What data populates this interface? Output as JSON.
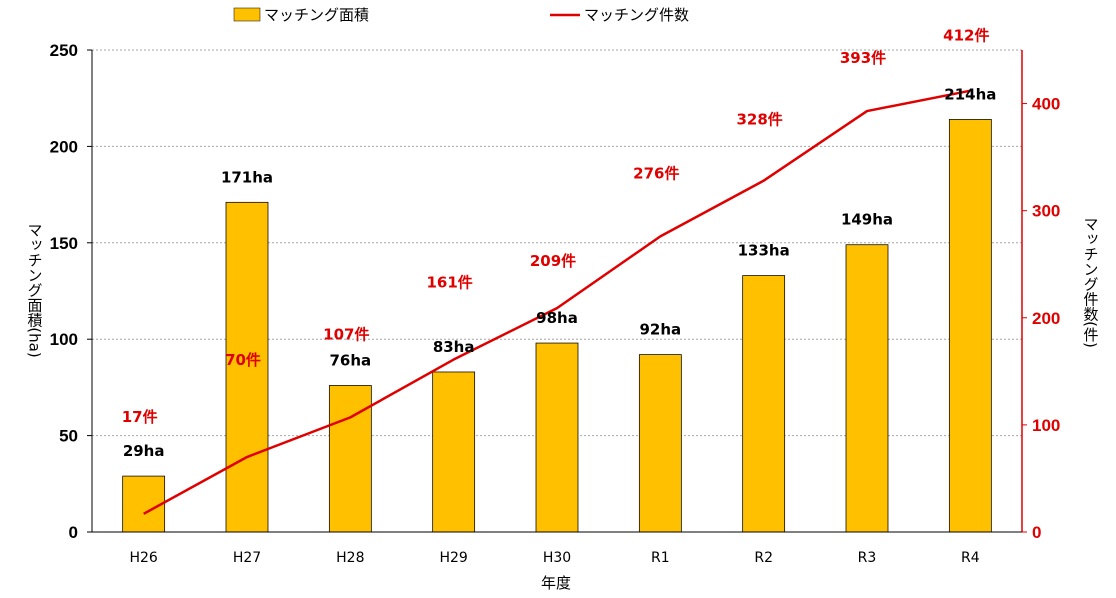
{
  "chart_data": {
    "type": "bar",
    "categories": [
      "H26",
      "H27",
      "H28",
      "H29",
      "H30",
      "R1",
      "R2",
      "R3",
      "R4"
    ],
    "series": [
      {
        "name": "マッチング面積",
        "type": "bar",
        "axis": "left",
        "values": [
          29,
          171,
          76,
          83,
          98,
          92,
          133,
          149,
          214
        ],
        "labels": [
          "29ha",
          "171ha",
          "76ha",
          "83ha",
          "98ha",
          "92ha",
          "133ha",
          "149ha",
          "214ha"
        ],
        "color": "#FFC000"
      },
      {
        "name": "マッチング件数",
        "type": "line",
        "axis": "right",
        "values": [
          17,
          70,
          107,
          161,
          209,
          276,
          328,
          393,
          412
        ],
        "labels": [
          "17件",
          "70件",
          "107件",
          "161件",
          "209件",
          "276件",
          "328件",
          "393件",
          "412件"
        ],
        "color": "#E00000"
      }
    ],
    "xlabel": "年度",
    "ylabel_left": "マッチング面積(ha)",
    "ylabel_right": "マッチング件数(件)",
    "ylim_left": [
      0,
      250
    ],
    "yticks_left": [
      "0",
      "50",
      "100",
      "150",
      "200",
      "250"
    ],
    "ylim_right": [
      0,
      450
    ],
    "yticks_right": [
      "0",
      "100",
      "200",
      "300",
      "400"
    ],
    "grid": true,
    "legend_position": "top"
  }
}
